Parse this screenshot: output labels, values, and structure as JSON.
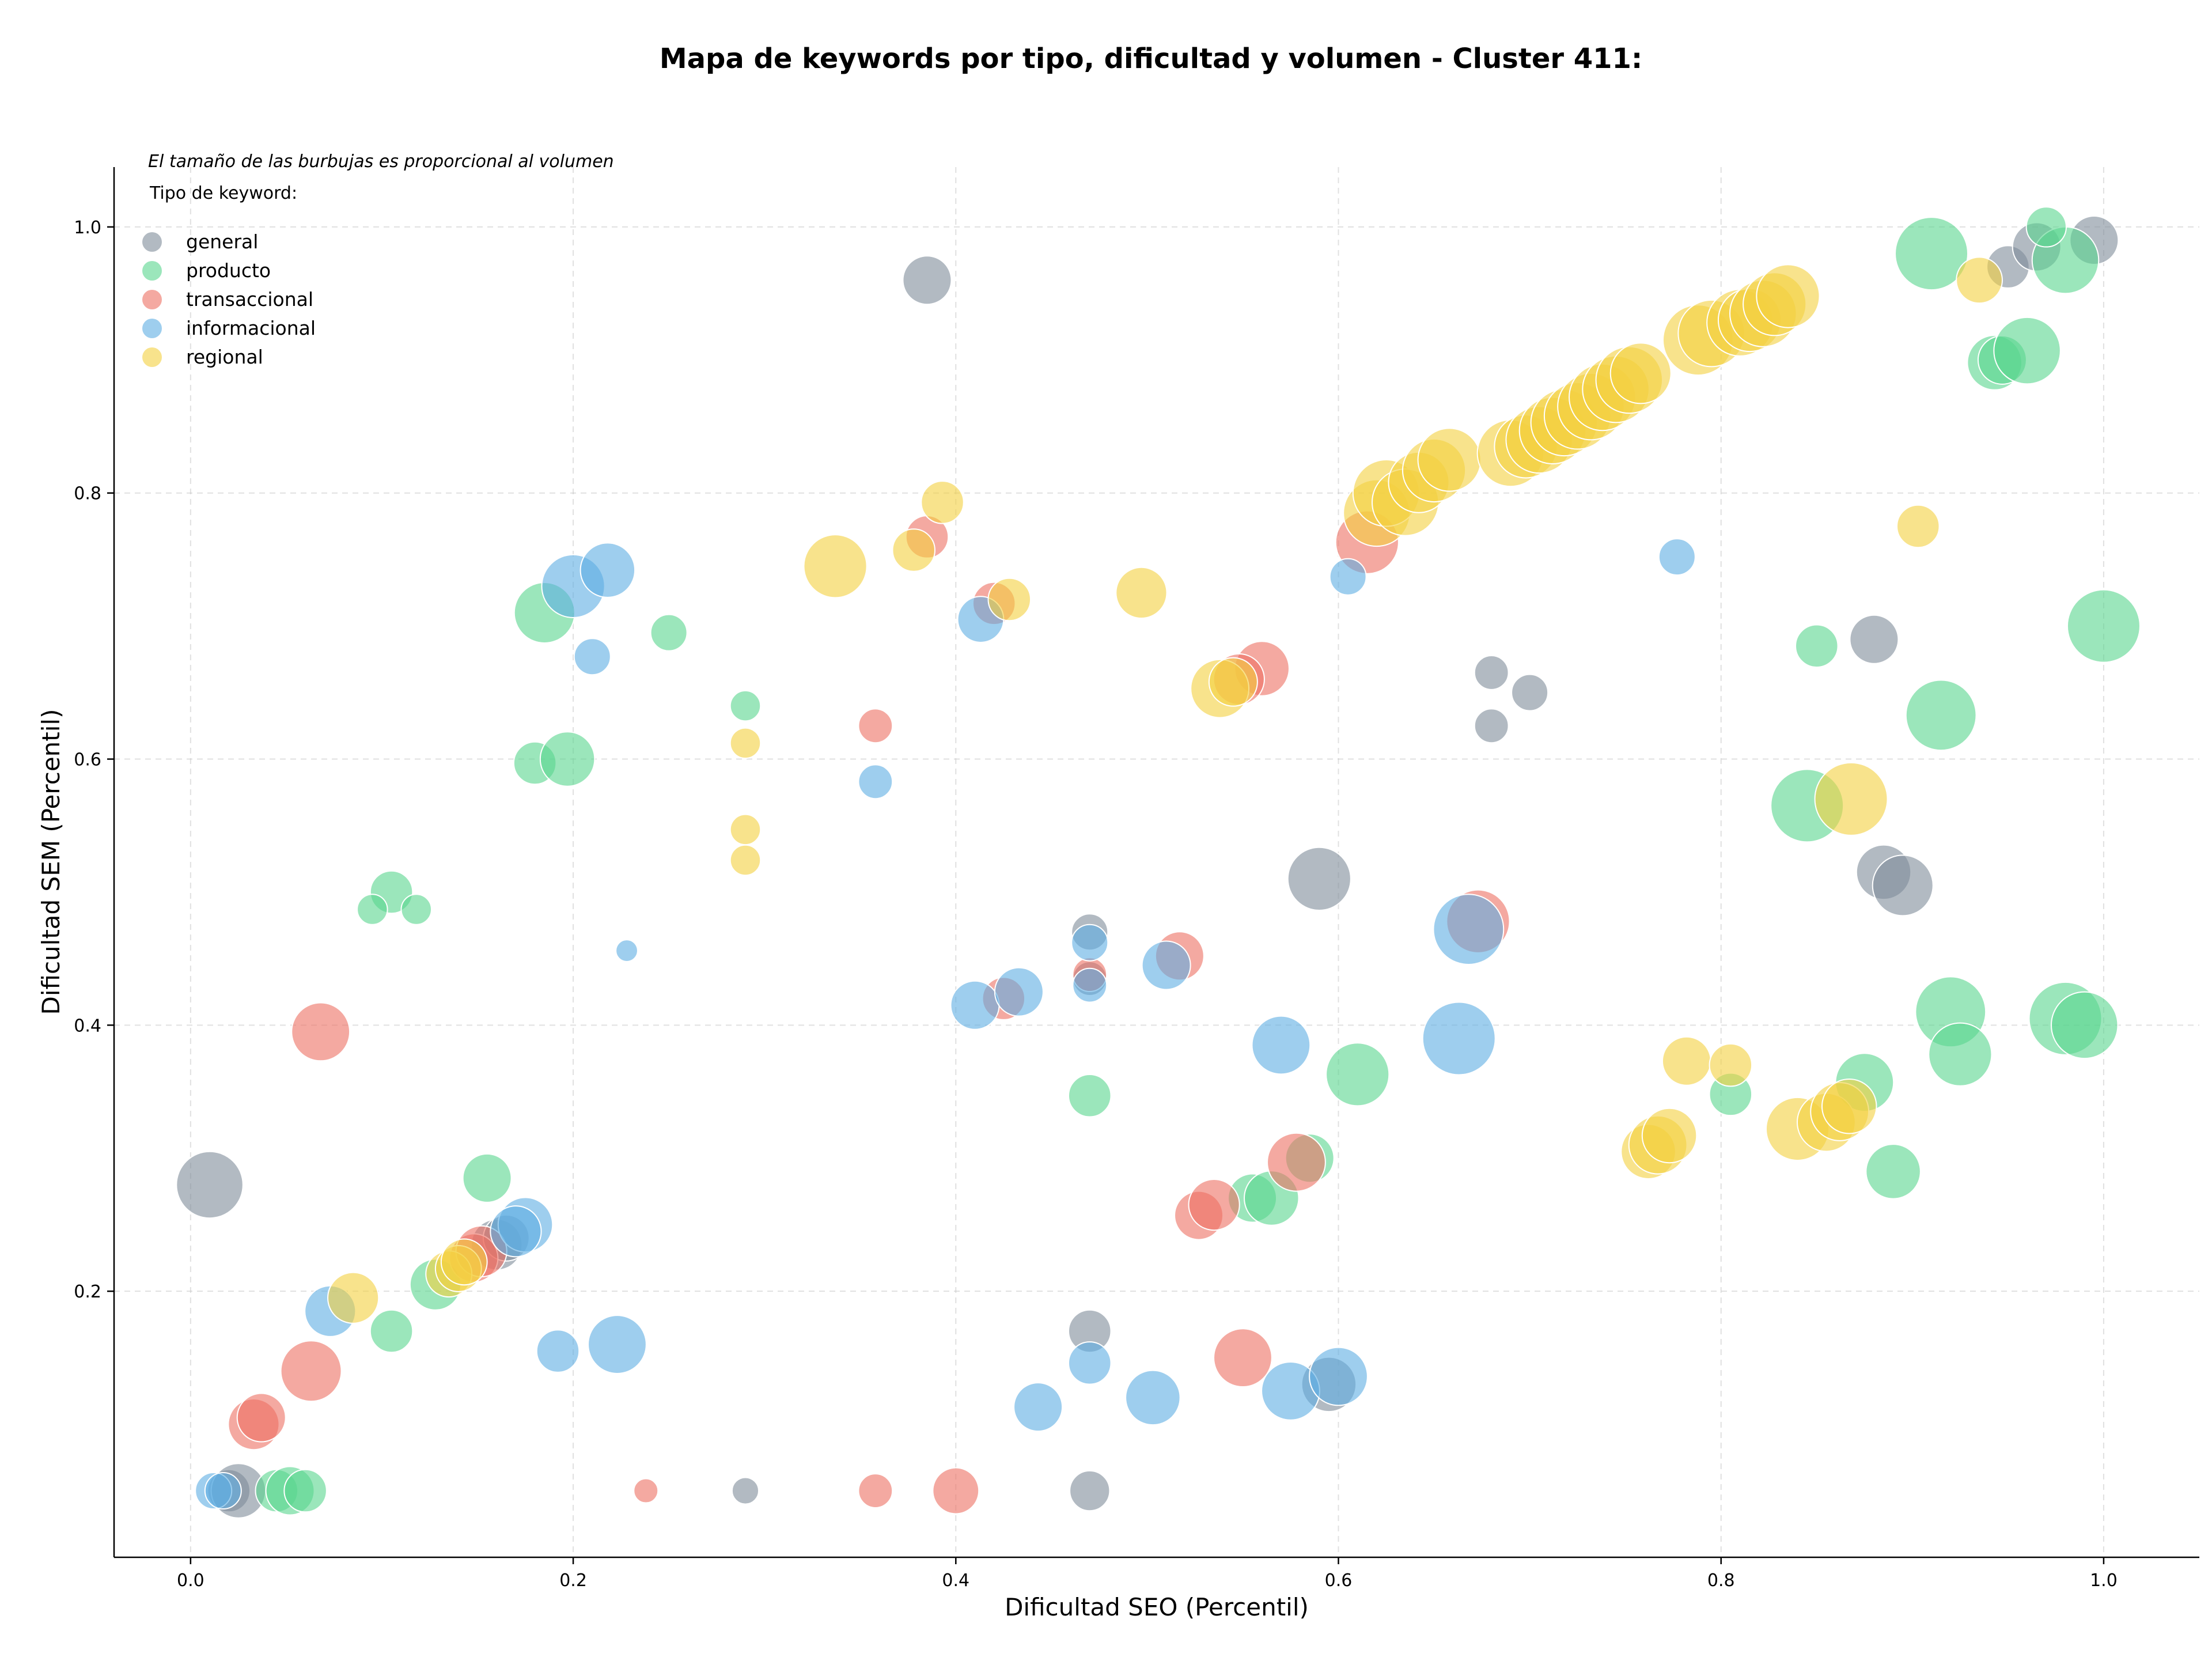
{
  "chart_data": {
    "type": "scatter",
    "title": "Mapa de keywords por tipo, dificultad y volumen - Cluster 411:",
    "xlabel": "Dificultad SEO (Percentil)",
    "ylabel": "Dificultad SEM (Percentil)",
    "note": "El tamaño de las burbujas es proporcional al volumen",
    "legend_title": "Tipo de keyword:",
    "legend_position": "top-left",
    "grid": true,
    "xlim": [
      -0.04,
      1.05
    ],
    "ylim": [
      0.0,
      1.045
    ],
    "xticks": [
      "0.0",
      "0.2",
      "0.4",
      "0.6",
      "0.8",
      "1.0"
    ],
    "yticks": [
      "0.2",
      "0.4",
      "0.6",
      "0.8",
      "1.0"
    ],
    "series": [
      {
        "name": "general",
        "color": "#7f8c9a",
        "points": [
          [
            0.385,
            0.96,
            40
          ],
          [
            0.01,
            0.28,
            55
          ],
          [
            0.02,
            0.05,
            35
          ],
          [
            0.025,
            0.05,
            45
          ],
          [
            0.29,
            0.05,
            22
          ],
          [
            0.47,
            0.05,
            33
          ],
          [
            0.47,
            0.17,
            35
          ],
          [
            0.47,
            0.47,
            30
          ],
          [
            0.47,
            0.435,
            28
          ],
          [
            0.59,
            0.51,
            52
          ],
          [
            0.595,
            0.13,
            45
          ],
          [
            0.68,
            0.665,
            28
          ],
          [
            0.68,
            0.625,
            28
          ],
          [
            0.7,
            0.65,
            30
          ],
          [
            0.88,
            0.69,
            40
          ],
          [
            0.885,
            0.515,
            45
          ],
          [
            0.895,
            0.505,
            50
          ],
          [
            0.95,
            0.97,
            35
          ],
          [
            0.965,
            0.985,
            40
          ],
          [
            0.995,
            0.99,
            40
          ],
          [
            0.16,
            0.235,
            42
          ],
          [
            0.165,
            0.24,
            38
          ]
        ]
      },
      {
        "name": "producto",
        "color": "#58d68d",
        "points": [
          [
            0.185,
            0.71,
            50
          ],
          [
            0.25,
            0.695,
            30
          ],
          [
            0.18,
            0.597,
            35
          ],
          [
            0.197,
            0.6,
            45
          ],
          [
            0.105,
            0.5,
            35
          ],
          [
            0.095,
            0.487,
            25
          ],
          [
            0.118,
            0.487,
            25
          ],
          [
            0.155,
            0.285,
            40
          ],
          [
            0.105,
            0.17,
            35
          ],
          [
            0.128,
            0.205,
            42
          ],
          [
            0.045,
            0.05,
            35
          ],
          [
            0.052,
            0.05,
            40
          ],
          [
            0.06,
            0.05,
            35
          ],
          [
            0.29,
            0.64,
            25
          ],
          [
            0.47,
            0.347,
            35
          ],
          [
            0.555,
            0.27,
            40
          ],
          [
            0.565,
            0.27,
            45
          ],
          [
            0.585,
            0.3,
            40
          ],
          [
            0.61,
            0.363,
            52
          ],
          [
            0.805,
            0.348,
            35
          ],
          [
            0.85,
            0.685,
            35
          ],
          [
            0.845,
            0.565,
            60
          ],
          [
            0.875,
            0.357,
            48
          ],
          [
            0.89,
            0.29,
            45
          ],
          [
            0.91,
            0.98,
            60
          ],
          [
            0.915,
            0.633,
            58
          ],
          [
            0.92,
            0.41,
            58
          ],
          [
            0.925,
            0.378,
            52
          ],
          [
            0.943,
            0.898,
            45
          ],
          [
            0.947,
            0.9,
            40
          ],
          [
            0.96,
            0.907,
            55
          ],
          [
            0.98,
            0.975,
            55
          ],
          [
            0.97,
            1.0,
            33
          ],
          [
            0.98,
            0.405,
            60
          ],
          [
            0.99,
            0.4,
            55
          ],
          [
            1.0,
            0.7,
            60
          ]
        ]
      },
      {
        "name": "transaccional",
        "color": "#ec7063",
        "points": [
          [
            0.385,
            0.767,
            35
          ],
          [
            0.358,
            0.625,
            28
          ],
          [
            0.42,
            0.717,
            35
          ],
          [
            0.068,
            0.395,
            48
          ],
          [
            0.063,
            0.14,
            50
          ],
          [
            0.033,
            0.1,
            42
          ],
          [
            0.037,
            0.105,
            40
          ],
          [
            0.148,
            0.225,
            40
          ],
          [
            0.152,
            0.23,
            42
          ],
          [
            0.238,
            0.05,
            20
          ],
          [
            0.358,
            0.05,
            28
          ],
          [
            0.4,
            0.05,
            38
          ],
          [
            0.425,
            0.42,
            35
          ],
          [
            0.47,
            0.438,
            28
          ],
          [
            0.517,
            0.452,
            40
          ],
          [
            0.527,
            0.257,
            40
          ],
          [
            0.535,
            0.265,
            42
          ],
          [
            0.55,
            0.15,
            48
          ],
          [
            0.56,
            0.668,
            45
          ],
          [
            0.548,
            0.66,
            42
          ],
          [
            0.578,
            0.297,
            48
          ],
          [
            0.615,
            0.763,
            52
          ],
          [
            0.673,
            0.478,
            52
          ]
        ]
      },
      {
        "name": "informacional",
        "color": "#5dade2",
        "points": [
          [
            0.2,
            0.73,
            52
          ],
          [
            0.218,
            0.742,
            45
          ],
          [
            0.21,
            0.677,
            30
          ],
          [
            0.358,
            0.583,
            28
          ],
          [
            0.413,
            0.705,
            38
          ],
          [
            0.228,
            0.456,
            18
          ],
          [
            0.41,
            0.415,
            40
          ],
          [
            0.433,
            0.425,
            40
          ],
          [
            0.47,
            0.462,
            30
          ],
          [
            0.47,
            0.43,
            28
          ],
          [
            0.51,
            0.445,
            40
          ],
          [
            0.57,
            0.385,
            48
          ],
          [
            0.605,
            0.737,
            30
          ],
          [
            0.663,
            0.39,
            60
          ],
          [
            0.668,
            0.472,
            58
          ],
          [
            0.777,
            0.752,
            30
          ],
          [
            0.073,
            0.185,
            42
          ],
          [
            0.175,
            0.25,
            45
          ],
          [
            0.17,
            0.245,
            42
          ],
          [
            0.192,
            0.155,
            35
          ],
          [
            0.223,
            0.16,
            48
          ],
          [
            0.443,
            0.113,
            40
          ],
          [
            0.47,
            0.146,
            35
          ],
          [
            0.503,
            0.12,
            45
          ],
          [
            0.575,
            0.125,
            48
          ],
          [
            0.6,
            0.136,
            48
          ],
          [
            0.012,
            0.05,
            30
          ],
          [
            0.017,
            0.05,
            30
          ]
        ]
      },
      {
        "name": "regional",
        "color": "#f4d03f",
        "points": [
          [
            0.337,
            0.745,
            52
          ],
          [
            0.378,
            0.757,
            35
          ],
          [
            0.393,
            0.793,
            35
          ],
          [
            0.428,
            0.72,
            35
          ],
          [
            0.497,
            0.725,
            42
          ],
          [
            0.538,
            0.653,
            48
          ],
          [
            0.545,
            0.658,
            40
          ],
          [
            0.29,
            0.612,
            25
          ],
          [
            0.29,
            0.547,
            25
          ],
          [
            0.29,
            0.524,
            25
          ],
          [
            0.085,
            0.195,
            42
          ],
          [
            0.135,
            0.213,
            38
          ],
          [
            0.14,
            0.217,
            38
          ],
          [
            0.143,
            0.222,
            38
          ],
          [
            0.782,
            0.373,
            40
          ],
          [
            0.805,
            0.37,
            35
          ],
          [
            0.762,
            0.305,
            45
          ],
          [
            0.767,
            0.31,
            48
          ],
          [
            0.773,
            0.317,
            45
          ],
          [
            0.84,
            0.322,
            52
          ],
          [
            0.855,
            0.327,
            48
          ],
          [
            0.862,
            0.335,
            48
          ],
          [
            0.867,
            0.339,
            45
          ],
          [
            0.868,
            0.57,
            60
          ],
          [
            0.903,
            0.775,
            35
          ],
          [
            0.935,
            0.96,
            38
          ],
          [
            0.62,
            0.785,
            55
          ],
          [
            0.625,
            0.8,
            55
          ],
          [
            0.635,
            0.793,
            55
          ],
          [
            0.642,
            0.808,
            50
          ],
          [
            0.65,
            0.817,
            52
          ],
          [
            0.658,
            0.825,
            52
          ],
          [
            0.69,
            0.83,
            55
          ],
          [
            0.698,
            0.835,
            52
          ],
          [
            0.705,
            0.84,
            55
          ],
          [
            0.712,
            0.847,
            55
          ],
          [
            0.718,
            0.853,
            55
          ],
          [
            0.725,
            0.858,
            55
          ],
          [
            0.732,
            0.865,
            55
          ],
          [
            0.738,
            0.872,
            55
          ],
          [
            0.745,
            0.878,
            55
          ],
          [
            0.752,
            0.885,
            55
          ],
          [
            0.758,
            0.89,
            50
          ],
          [
            0.788,
            0.915,
            58
          ],
          [
            0.795,
            0.92,
            55
          ],
          [
            0.81,
            0.928,
            55
          ],
          [
            0.815,
            0.93,
            52
          ],
          [
            0.822,
            0.935,
            55
          ],
          [
            0.828,
            0.942,
            52
          ],
          [
            0.835,
            0.948,
            52
          ]
        ]
      }
    ]
  }
}
